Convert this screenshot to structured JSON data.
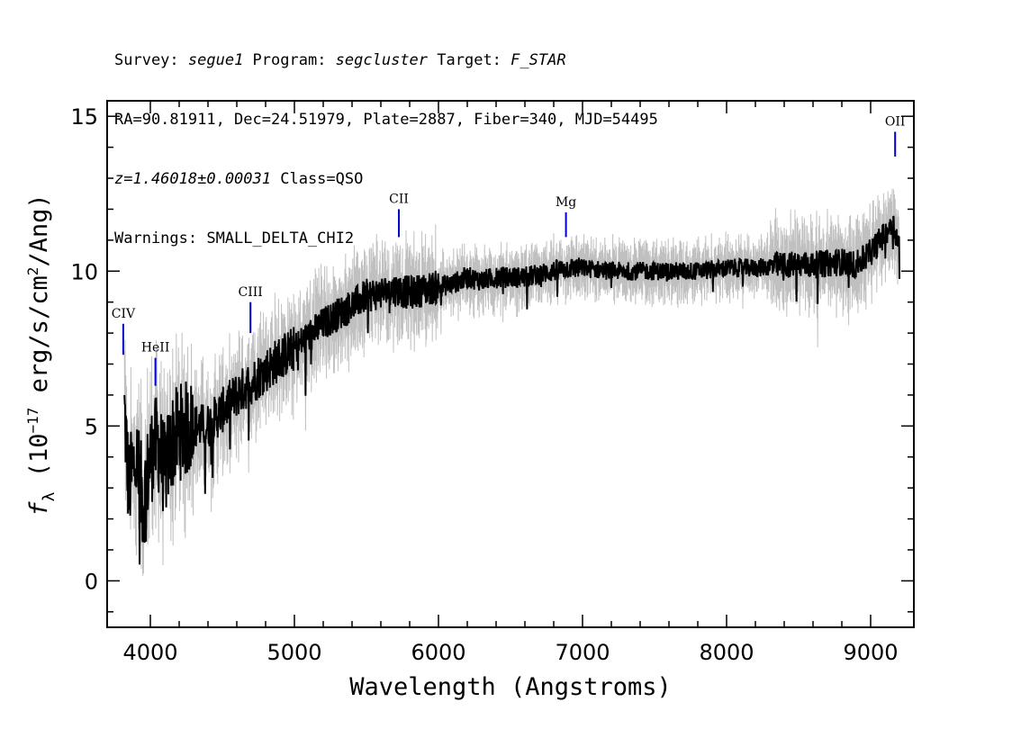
{
  "header": {
    "line1": {
      "survey_label": "Survey: ",
      "survey": "segue1",
      "program_label": " Program: ",
      "program": "segcluster",
      "target_label": " Target: ",
      "target": "F_STAR"
    },
    "line2": "RA=90.81911, Dec=24.51979, Plate=2887, Fiber=340, MJD=54495",
    "line3": {
      "z": "z=1.46018±0.00031",
      "cls": " Class=QSO"
    },
    "line4": "Warnings: SMALL_DELTA_CHI2"
  },
  "chart_data": {
    "type": "line",
    "xlabel": "Wavelength (Angstroms)",
    "ylabel": "f_λ (10^-17 erg/s/cm²/Ang)",
    "xlim": [
      3700,
      9300
    ],
    "ylim": [
      -1.5,
      15.5
    ],
    "x_ticks": [
      4000,
      5000,
      6000,
      7000,
      8000,
      9000
    ],
    "y_ticks": [
      0,
      5,
      10,
      15
    ],
    "grid": false,
    "colors": {
      "flux": "#000000",
      "error_band": "#c0c0c0",
      "line_marker": "#0000cc"
    },
    "series": [
      {
        "x": [
          3820,
          3850,
          3900,
          3950,
          4000,
          4050,
          4100,
          4150,
          4200,
          4300,
          4400,
          4500,
          4600,
          4700,
          4800,
          4900,
          5000,
          5100,
          5200,
          5300,
          5400,
          5500,
          5600,
          5700,
          5800,
          5900,
          6000,
          6100,
          6200,
          6300,
          6400,
          6500,
          6600,
          6700,
          6800,
          6900,
          7000,
          7200,
          7400,
          7600,
          7800,
          8000,
          8200,
          8400,
          8600,
          8800,
          8900,
          9000,
          9100,
          9150,
          9200
        ],
        "values": [
          5.5,
          3.0,
          4.0,
          2.5,
          4.0,
          4.5,
          3.5,
          4.5,
          4.8,
          5.0,
          5.0,
          5.5,
          6.0,
          6.4,
          6.8,
          7.2,
          7.5,
          7.9,
          8.3,
          8.6,
          8.9,
          9.2,
          9.3,
          9.4,
          9.3,
          9.4,
          9.5,
          9.6,
          9.8,
          9.7,
          9.8,
          9.8,
          9.8,
          9.9,
          10.0,
          10.1,
          10.1,
          10.0,
          10.0,
          10.0,
          10.0,
          10.1,
          10.1,
          10.2,
          10.2,
          10.3,
          10.2,
          10.6,
          11.2,
          11.6,
          10.8
        ]
      }
    ],
    "line_markers": [
      {
        "label": "CIV",
        "wavelength": 3812,
        "flux_top": 7.3,
        "flux_bottom": 8.3,
        "label_flux": 8.5
      },
      {
        "label": "HeII",
        "wavelength": 4035,
        "flux_top": 6.3,
        "flux_bottom": 7.2,
        "label_flux": 7.4
      },
      {
        "label": "CIII",
        "wavelength": 4695,
        "flux_top": 8.0,
        "flux_bottom": 9.0,
        "label_flux": 9.2
      },
      {
        "label": "CII",
        "wavelength": 5725,
        "flux_top": 11.1,
        "flux_bottom": 12.0,
        "label_flux": 12.2
      },
      {
        "label": "Mg",
        "wavelength": 6885,
        "flux_top": 11.1,
        "flux_bottom": 11.9,
        "label_flux": 12.1
      },
      {
        "label": "OII",
        "wavelength": 9170,
        "flux_top": 13.7,
        "flux_bottom": 14.5,
        "label_flux": 14.7
      }
    ]
  }
}
